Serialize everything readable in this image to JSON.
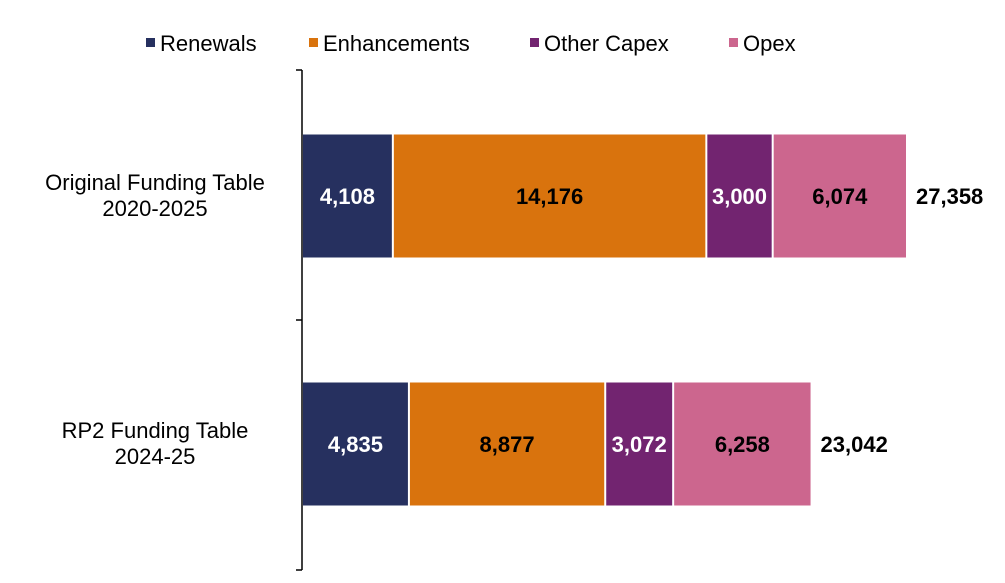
{
  "chart_data": {
    "type": "bar",
    "orientation": "horizontal",
    "stacked": true,
    "categories": [
      [
        "Original Funding Table",
        "2020-2025"
      ],
      [
        "RP2 Funding Table",
        "2024-25"
      ]
    ],
    "series": [
      {
        "name": "Renewals",
        "color": "#26305f",
        "label_color": "#ffffff",
        "values": [
          4108,
          4835
        ],
        "labels": [
          "4,108",
          "4,835"
        ]
      },
      {
        "name": "Enhancements",
        "color": "#d9730d",
        "label_color": "#000000",
        "values": [
          14176,
          8877
        ],
        "labels": [
          "14,176",
          "8,877"
        ]
      },
      {
        "name": "Other Capex",
        "color": "#722470",
        "label_color": "#ffffff",
        "values": [
          3000,
          3072
        ],
        "labels": [
          "3,000",
          "3,072"
        ]
      },
      {
        "name": "Opex",
        "color": "#cc668e",
        "label_color": "#000000",
        "values": [
          6074,
          6258
        ],
        "labels": [
          "6,074",
          "6,258"
        ]
      }
    ],
    "totals": [
      27358,
      23042
    ],
    "total_labels": [
      "27,358",
      "23,042"
    ],
    "legend_position": "top",
    "grid": false
  }
}
